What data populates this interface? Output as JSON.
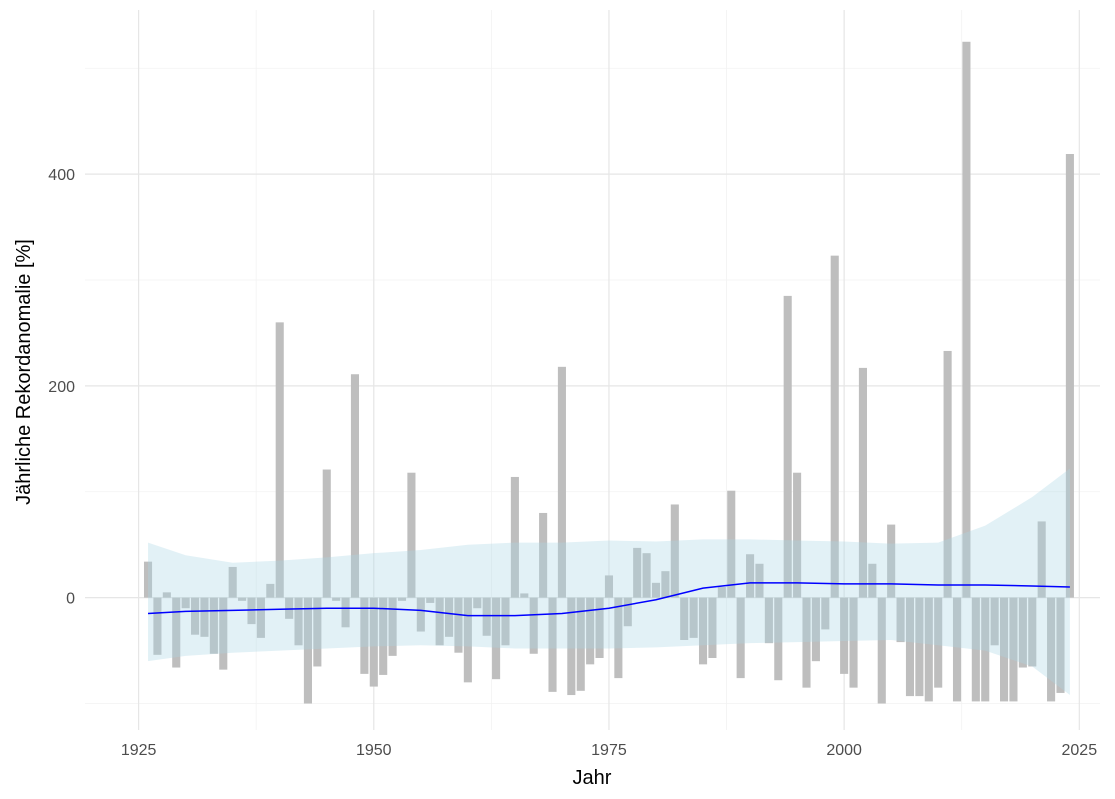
{
  "chart_data": {
    "type": "bar",
    "x_label": "Jahr",
    "y_label": "Jährliche Rekordanomalie [%]",
    "x": [
      1926,
      1927,
      1928,
      1929,
      1930,
      1931,
      1932,
      1933,
      1934,
      1935,
      1936,
      1937,
      1938,
      1939,
      1940,
      1941,
      1942,
      1943,
      1944,
      1945,
      1946,
      1947,
      1948,
      1949,
      1950,
      1951,
      1952,
      1953,
      1954,
      1955,
      1956,
      1957,
      1958,
      1959,
      1960,
      1961,
      1962,
      1963,
      1964,
      1965,
      1966,
      1967,
      1968,
      1969,
      1970,
      1971,
      1972,
      1973,
      1974,
      1975,
      1976,
      1977,
      1978,
      1979,
      1980,
      1981,
      1982,
      1983,
      1984,
      1985,
      1986,
      1987,
      1988,
      1989,
      1990,
      1991,
      1992,
      1993,
      1994,
      1995,
      1996,
      1997,
      1998,
      1999,
      2000,
      2001,
      2002,
      2003,
      2004,
      2005,
      2006,
      2007,
      2008,
      2009,
      2010,
      2011,
      2012,
      2013,
      2014,
      2015,
      2016,
      2017,
      2018,
      2019,
      2020,
      2021,
      2022,
      2023,
      2024
    ],
    "values": [
      34,
      -54,
      5,
      -66,
      -10,
      -35,
      -37,
      -53,
      -68,
      29,
      -3,
      -25,
      -38,
      13,
      260,
      -20,
      -45,
      -100,
      -65,
      121,
      -3,
      -28,
      211,
      -72,
      -84,
      -73,
      -55,
      -3,
      118,
      -32,
      -5,
      -45,
      -37,
      -52,
      -80,
      -10,
      -36,
      -77,
      -45,
      114,
      4,
      -53,
      80,
      -89,
      218,
      -92,
      -88,
      -63,
      -57,
      21,
      -76,
      -27,
      47,
      42,
      14,
      25,
      88,
      -40,
      -38,
      -63,
      -57,
      10,
      101,
      -76,
      41,
      32,
      -43,
      -78,
      285,
      118,
      -85,
      -60,
      -30,
      323,
      -72,
      -85,
      217,
      32,
      -100,
      69,
      -42,
      -93,
      -93,
      -98,
      -85,
      233,
      -98,
      525,
      -98,
      -98,
      -45,
      -98,
      -98,
      -66,
      -65,
      72,
      -98,
      -90,
      419
    ],
    "color": "#bebebe",
    "xlim": [
      1919.3,
      2027.2
    ],
    "ylim": [
      -125,
      555
    ],
    "xticks": [
      1925,
      1950,
      1975,
      2000,
      2025
    ],
    "yticks": [
      0,
      200,
      400
    ],
    "xminor": [
      1937.5,
      1962.5,
      1987.5,
      2012.5
    ],
    "yminor": [
      -100,
      100,
      300,
      500
    ],
    "grid": true,
    "trend": {
      "x": [
        1926,
        1930,
        1935,
        1940,
        1945,
        1950,
        1955,
        1960,
        1965,
        1970,
        1975,
        1980,
        1985,
        1990,
        1995,
        2000,
        2005,
        2010,
        2015,
        2020,
        2024
      ],
      "values": [
        -15,
        -13,
        -12,
        -11,
        -10,
        -10,
        -12,
        -17,
        -17,
        -15,
        -10,
        -2,
        9,
        14,
        14,
        13,
        13,
        12,
        12,
        11,
        10
      ],
      "color": "#0000ff"
    },
    "band": {
      "x": [
        1926,
        1930,
        1935,
        1940,
        1945,
        1950,
        1955,
        1960,
        1965,
        1970,
        1975,
        1980,
        1985,
        1990,
        1995,
        2000,
        2005,
        2010,
        2015,
        2020,
        2024
      ],
      "upper": [
        52,
        40,
        33,
        35,
        38,
        42,
        45,
        50,
        52,
        52,
        54,
        53,
        55,
        55,
        54,
        53,
        51,
        52,
        68,
        95,
        122
      ],
      "lower": [
        -60,
        -55,
        -52,
        -50,
        -48,
        -46,
        -45,
        -46,
        -48,
        -48,
        -48,
        -47,
        -45,
        -43,
        -42,
        -41,
        -40,
        -45,
        -50,
        -65,
        -92
      ],
      "color": "#add8e6"
    }
  }
}
